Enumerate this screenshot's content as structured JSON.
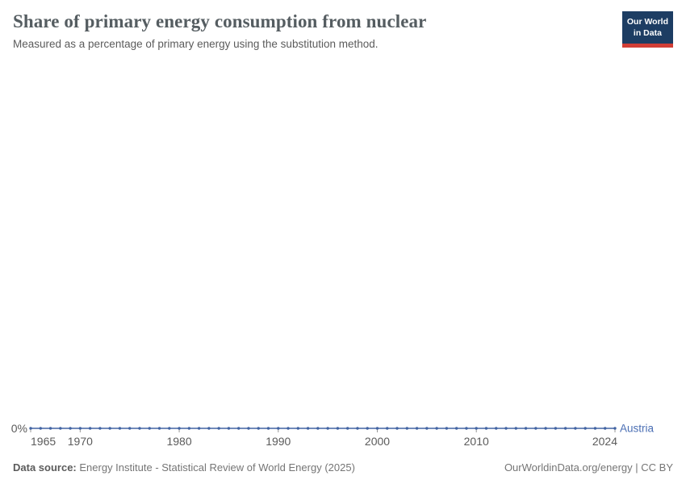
{
  "header": {
    "title": "Share of primary energy consumption from nuclear",
    "subtitle": "Measured as a percentage of primary energy using the substitution method.",
    "logo_line1": "Our World",
    "logo_line2": "in Data",
    "logo_bg_color": "#1d3d63",
    "logo_accent_color": "#d13e36"
  },
  "chart_data": {
    "type": "line",
    "title": "Share of primary energy consumption from nuclear",
    "subtitle": "Measured as a percentage of primary energy using the substitution method.",
    "xlabel": "",
    "ylabel": "",
    "grid": false,
    "legend_position": "right-of-line-end",
    "ylim": [
      0,
      1
    ],
    "y_tick_labels": [
      "0%"
    ],
    "x_ticks": [
      1965,
      1970,
      1980,
      1990,
      2000,
      2010,
      2024
    ],
    "x": [
      1965,
      1966,
      1967,
      1968,
      1969,
      1970,
      1971,
      1972,
      1973,
      1974,
      1975,
      1976,
      1977,
      1978,
      1979,
      1980,
      1981,
      1982,
      1983,
      1984,
      1985,
      1986,
      1987,
      1988,
      1989,
      1990,
      1991,
      1992,
      1993,
      1994,
      1995,
      1996,
      1997,
      1998,
      1999,
      2000,
      2001,
      2002,
      2003,
      2004,
      2005,
      2006,
      2007,
      2008,
      2009,
      2010,
      2011,
      2012,
      2013,
      2014,
      2015,
      2016,
      2017,
      2018,
      2019,
      2020,
      2021,
      2022,
      2023,
      2024
    ],
    "series": [
      {
        "name": "Austria",
        "color": "#4264a3",
        "label_color": "#4b6fb4",
        "values": [
          0,
          0,
          0,
          0,
          0,
          0,
          0,
          0,
          0,
          0,
          0,
          0,
          0,
          0,
          0,
          0,
          0,
          0,
          0,
          0,
          0,
          0,
          0,
          0,
          0,
          0,
          0,
          0,
          0,
          0,
          0,
          0,
          0,
          0,
          0,
          0,
          0,
          0,
          0,
          0,
          0,
          0,
          0,
          0,
          0,
          0,
          0,
          0,
          0,
          0,
          0,
          0,
          0,
          0,
          0,
          0,
          0,
          0,
          0,
          0
        ]
      }
    ],
    "axis_text_color": "#5b5b5b",
    "tick_mark_color": "#999999"
  },
  "footer": {
    "data_source_label": "Data source:",
    "data_source": "Energy Institute - Statistical Review of World Energy (2025)",
    "right_text": "OurWorldinData.org/energy | CC BY"
  }
}
